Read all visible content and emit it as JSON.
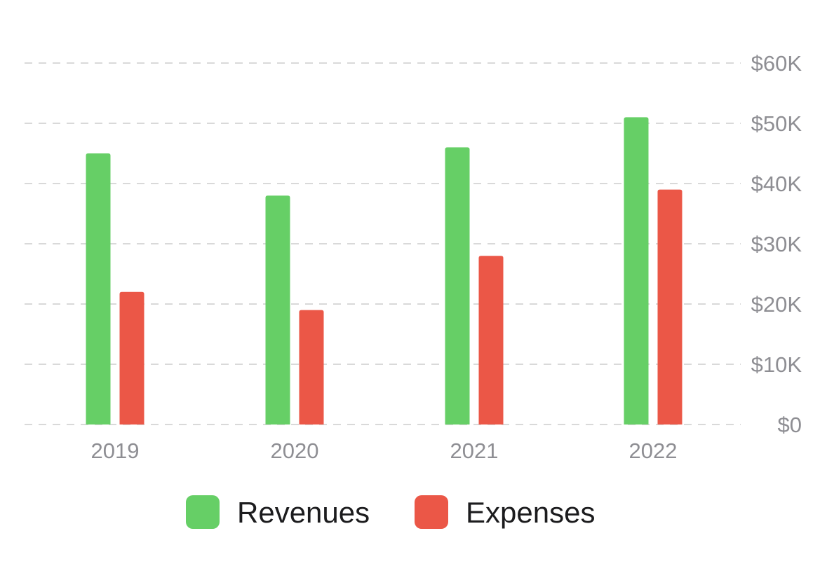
{
  "chart_data": {
    "type": "bar",
    "categories": [
      "2019",
      "2020",
      "2021",
      "2022"
    ],
    "series": [
      {
        "name": "Revenues",
        "color": "#66cf66",
        "values": [
          45000,
          38000,
          46000,
          51000
        ]
      },
      {
        "name": "Expenses",
        "color": "#eb5747",
        "values": [
          22000,
          19000,
          28000,
          39000
        ]
      }
    ],
    "ylim": [
      0,
      60000
    ],
    "yticks": [
      0,
      10000,
      20000,
      30000,
      40000,
      50000,
      60000
    ],
    "ytick_labels": [
      "$0",
      "$10K",
      "$20K",
      "$30K",
      "$40K",
      "$50K",
      "$60K"
    ],
    "y_axis_side": "right",
    "grid": "dashed-horizontal",
    "legend": "bottom-center"
  }
}
